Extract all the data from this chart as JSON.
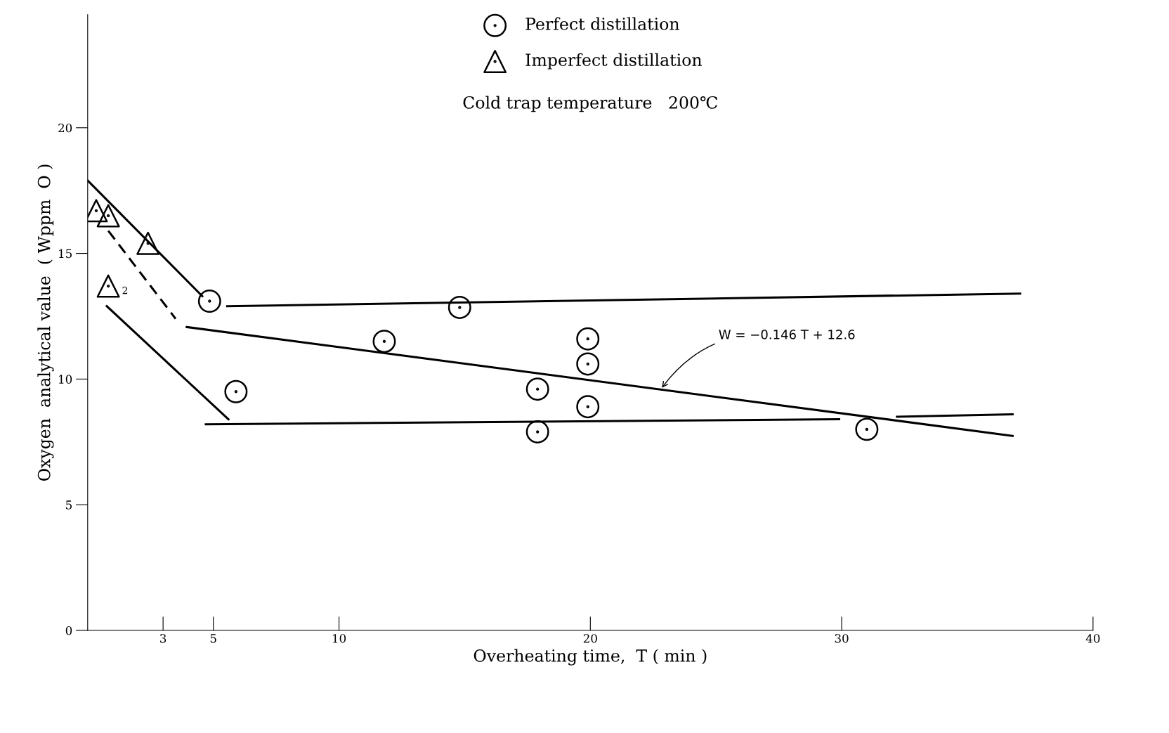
{
  "chart_data": {
    "type": "scatter",
    "xlabel": "Overheating time,  T ( min )",
    "ylabel": "Oxygen  analytical value  ( Wppm  O )",
    "xlim": [
      0,
      40
    ],
    "ylim": [
      0,
      24.5
    ],
    "xticks": [
      3,
      5,
      10,
      20,
      30,
      40
    ],
    "yticks": [
      0,
      5,
      10,
      15,
      20
    ],
    "grid": false,
    "legend": "top",
    "series": [
      {
        "name": "Perfect distillation",
        "marker": "circle",
        "color": "#000000",
        "x": [
          4.85,
          5.9,
          11.8,
          14.8,
          17.9,
          17.9,
          19.9,
          19.9,
          19.9,
          31.0
        ],
        "values": [
          13.1,
          9.5,
          11.5,
          12.85,
          9.6,
          7.9,
          11.6,
          10.6,
          8.9,
          8.0
        ]
      },
      {
        "name": "Imperfect distillation",
        "marker": "triangle",
        "color": "#000000",
        "x": [
          0.34,
          0.82,
          2.4,
          0.82
        ],
        "values": [
          16.7,
          16.5,
          15.4,
          13.7
        ]
      },
      {
        "type": "line",
        "line_style": "solid",
        "color": "#000000",
        "x": [
          3.94,
          36.8
        ],
        "values": [
          12.07,
          7.74
        ]
      },
      {
        "type": "line",
        "line_style": "dashed",
        "color": "#000000",
        "x": [
          0.82,
          3.5
        ],
        "values": [
          15.9,
          12.4
        ]
      },
      {
        "type": "line",
        "line_style": "solid",
        "color": "#000000",
        "x": [
          0,
          4.56
        ],
        "values": [
          17.9,
          13.3
        ]
      },
      {
        "type": "line",
        "line_style": "solid",
        "color": "#000000",
        "x": [
          5.55,
          37.1
        ],
        "values": [
          12.9,
          13.4
        ]
      },
      {
        "type": "line",
        "line_style": "solid",
        "color": "#000000",
        "x": [
          0.76,
          5.6
        ],
        "values": [
          12.9,
          8.4
        ]
      },
      {
        "type": "line",
        "line_style": "solid",
        "color": "#000000",
        "x": [
          4.7,
          29.9
        ],
        "values": [
          8.2,
          8.4
        ]
      },
      {
        "type": "line",
        "line_style": "solid",
        "color": "#000000",
        "x": [
          32.2,
          36.8
        ],
        "values": [
          8.5,
          8.6
        ]
      }
    ],
    "annotations": [
      "Cold trap temperature   200℃",
      {
        "text": "W = −0.146 T + 12.6",
        "x": 22.8,
        "y": 9.59
      },
      {
        "text": "2",
        "x": 0.82,
        "y": 13.7
      }
    ]
  }
}
